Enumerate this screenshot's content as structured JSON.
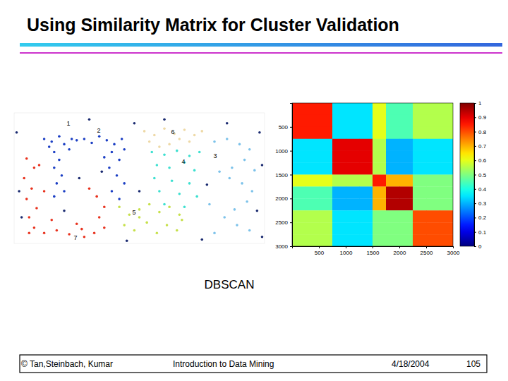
{
  "slide": {
    "title": "Using Similarity Matrix for Cluster Validation",
    "caption": "DBSCAN",
    "footer": [
      "© Tan,Steinbach, Kumar",
      "Introduction to Data Mining",
      "4/18/2004",
      "105"
    ]
  },
  "chart_data": [
    {
      "type": "scatter",
      "marker": "dot",
      "tick_labels": false,
      "xlim": [
        0,
        100
      ],
      "ylim": [
        0,
        100
      ],
      "series": [
        {
          "color": "#1c3fc4",
          "x": [
            12,
            15,
            18,
            20,
            23,
            16,
            18,
            16,
            19,
            17,
            20,
            16,
            22,
            25,
            14
          ],
          "values": [
            80,
            78,
            82,
            76,
            80,
            70,
            64,
            58,
            52,
            46,
            40,
            36,
            72,
            79,
            74
          ]
        },
        {
          "color": "#1c3fc4",
          "x": [
            28,
            31,
            34,
            37,
            40,
            43,
            39,
            42,
            38,
            41,
            44,
            39,
            42,
            44,
            36
          ],
          "values": [
            80,
            77,
            82,
            79,
            76,
            80,
            70,
            64,
            58,
            52,
            46,
            40,
            34,
            72,
            66
          ]
        },
        {
          "color": "#e8321e",
          "x": [
            5,
            8,
            4,
            7,
            5,
            9,
            6,
            8,
            12,
            17,
            22,
            27,
            32,
            36,
            34,
            36,
            33,
            30,
            10,
            12,
            25,
            15,
            6,
            28
          ],
          "values": [
            65,
            58,
            50,
            42,
            34,
            27,
            20,
            12,
            8,
            10,
            7,
            11,
            8,
            12,
            20,
            28,
            36,
            42,
            60,
            40,
            15,
            18,
            8,
            5
          ]
        },
        {
          "color": "#eed9a6",
          "x": [
            52,
            56,
            60,
            64,
            68,
            72,
            75,
            54,
            62,
            70,
            58,
            66
          ],
          "values": [
            86,
            83,
            88,
            84,
            87,
            83,
            86,
            78,
            76,
            78,
            74,
            80
          ]
        },
        {
          "color": "#3de0d0",
          "x": [
            55,
            60,
            65,
            70,
            74,
            57,
            62,
            68,
            72,
            56,
            63,
            70,
            58,
            66,
            73,
            60,
            68
          ],
          "values": [
            70,
            68,
            71,
            67,
            70,
            60,
            58,
            62,
            56,
            50,
            48,
            46,
            40,
            38,
            36,
            30,
            28
          ]
        },
        {
          "color": "#c6e04a",
          "x": [
            42,
            46,
            50,
            54,
            58,
            62,
            66,
            44,
            48,
            53,
            57,
            61,
            65,
            67,
            50
          ],
          "values": [
            28,
            22,
            26,
            30,
            24,
            28,
            22,
            14,
            10,
            16,
            8,
            14,
            10,
            18,
            20
          ]
        },
        {
          "color": "#7cc2ea",
          "x": [
            80,
            85,
            90,
            94,
            92,
            87,
            82,
            86,
            91,
            95,
            93,
            88,
            84,
            89,
            94,
            80,
            78,
            96
          ],
          "values": [
            78,
            80,
            76,
            72,
            64,
            58,
            55,
            50,
            46,
            40,
            32,
            26,
            20,
            14,
            10,
            8,
            30,
            56
          ]
        },
        {
          "color": "#1a2a70",
          "x": [
            2,
            3,
            30,
            48,
            85,
            98,
            99,
            97,
            50,
            26,
            45,
            75,
            1,
            20,
            77,
            60,
            35,
            99
          ],
          "values": [
            40,
            20,
            95,
            92,
            92,
            85,
            60,
            25,
            40,
            50,
            2,
            3,
            85,
            25,
            45,
            95,
            55,
            5
          ]
        }
      ],
      "annotations": [
        {
          "text": "1",
          "x": 21.7,
          "y": 91.7
        },
        {
          "text": "2",
          "x": 33.8,
          "y": 86.1
        },
        {
          "text": "6",
          "x": 63.4,
          "y": 85
        },
        {
          "text": "4",
          "x": 67.6,
          "y": 62.2
        },
        {
          "text": "3",
          "x": 80.3,
          "y": 66.7
        },
        {
          "text": "5",
          "x": 47.9,
          "y": 23.3
        },
        {
          "text": "7",
          "x": 24.5,
          "y": 3.9
        }
      ]
    },
    {
      "type": "heatmap",
      "xlim": [
        0,
        3000
      ],
      "ylim": [
        3000,
        0
      ],
      "xticks": [
        500,
        1000,
        1500,
        2000,
        2500,
        3000
      ],
      "yticks": [
        500,
        1000,
        1500,
        2000,
        2500,
        3000
      ],
      "edges": [
        0,
        250,
        500,
        750,
        1000,
        1250,
        1500,
        1750,
        2000,
        2250,
        2500,
        2750,
        3000
      ],
      "matrix": [
        [
          0.85,
          0.85,
          0.85,
          0.35,
          0.35,
          0.35,
          0.6,
          0.45,
          0.45,
          0.55,
          0.55,
          0.55
        ],
        [
          0.85,
          0.85,
          0.85,
          0.35,
          0.35,
          0.35,
          0.6,
          0.45,
          0.45,
          0.55,
          0.55,
          0.55
        ],
        [
          0.85,
          0.85,
          0.85,
          0.35,
          0.35,
          0.35,
          0.6,
          0.45,
          0.45,
          0.55,
          0.55,
          0.55
        ],
        [
          0.35,
          0.35,
          0.35,
          0.9,
          0.9,
          0.9,
          0.55,
          0.3,
          0.3,
          0.35,
          0.35,
          0.35
        ],
        [
          0.35,
          0.35,
          0.35,
          0.9,
          0.9,
          0.9,
          0.55,
          0.3,
          0.3,
          0.35,
          0.35,
          0.35
        ],
        [
          0.35,
          0.35,
          0.35,
          0.9,
          0.9,
          0.9,
          0.55,
          0.3,
          0.3,
          0.35,
          0.35,
          0.35
        ],
        [
          0.6,
          0.6,
          0.6,
          0.55,
          0.55,
          0.55,
          0.85,
          0.7,
          0.7,
          0.5,
          0.5,
          0.5
        ],
        [
          0.45,
          0.45,
          0.45,
          0.3,
          0.3,
          0.3,
          0.7,
          0.95,
          0.95,
          0.5,
          0.5,
          0.5
        ],
        [
          0.45,
          0.45,
          0.45,
          0.3,
          0.3,
          0.3,
          0.7,
          0.95,
          0.95,
          0.5,
          0.5,
          0.5
        ],
        [
          0.55,
          0.55,
          0.55,
          0.35,
          0.35,
          0.35,
          0.5,
          0.5,
          0.5,
          0.8,
          0.8,
          0.8
        ],
        [
          0.55,
          0.55,
          0.55,
          0.35,
          0.35,
          0.35,
          0.5,
          0.5,
          0.5,
          0.8,
          0.8,
          0.8
        ],
        [
          0.55,
          0.55,
          0.55,
          0.35,
          0.35,
          0.35,
          0.5,
          0.5,
          0.5,
          0.8,
          0.8,
          0.8
        ]
      ],
      "colorbar": {
        "range": [
          0,
          1
        ],
        "ticks": [
          0,
          0.1,
          0.2,
          0.3,
          0.4,
          0.5,
          0.6,
          0.7,
          0.8,
          0.9,
          1
        ]
      }
    }
  ]
}
